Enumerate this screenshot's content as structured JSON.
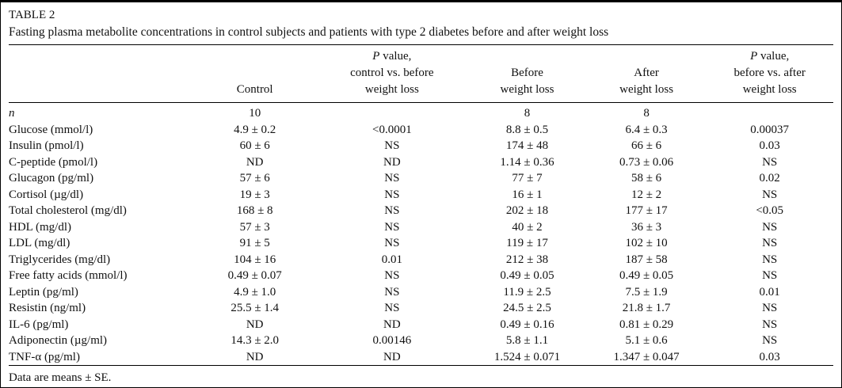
{
  "page": {
    "table_label": "TABLE 2",
    "caption": "Fasting plasma metabolite concentrations in control subjects and patients with type 2 diabetes before and after weight loss",
    "footnote": "Data are means ± SE."
  },
  "chart_data": {
    "type": "table",
    "headers": [
      {
        "lines": [
          ""
        ]
      },
      {
        "lines": [
          "Control"
        ]
      },
      {
        "lines": [
          "P value,",
          "control vs. before",
          "weight loss"
        ],
        "italic_first_letter": true
      },
      {
        "lines": [
          "Before",
          "weight loss"
        ]
      },
      {
        "lines": [
          "After",
          "weight loss"
        ]
      },
      {
        "lines": [
          "P value,",
          "before vs. after",
          "weight loss"
        ],
        "italic_first_letter": true
      }
    ],
    "rows": [
      {
        "label": "n",
        "label_italic": true,
        "values": [
          "10",
          "",
          "8",
          "8",
          ""
        ]
      },
      {
        "label": "Glucose (mmol/l)",
        "values": [
          "4.9 ± 0.2",
          "<0.0001",
          "8.8 ± 0.5",
          "6.4 ± 0.3",
          "0.00037"
        ]
      },
      {
        "label": "Insulin (pmol/l)",
        "values": [
          "60 ± 6",
          "NS",
          "174 ± 48",
          "66 ± 6",
          "0.03"
        ]
      },
      {
        "label": "C-peptide (pmol/l)",
        "values": [
          "ND",
          "ND",
          "1.14 ± 0.36",
          "0.73 ± 0.06",
          "NS"
        ]
      },
      {
        "label": "Glucagon (pg/ml)",
        "values": [
          "57 ± 6",
          "NS",
          "77 ± 7",
          "58 ± 6",
          "0.02"
        ]
      },
      {
        "label": "Cortisol (µg/dl)",
        "values": [
          "19 ± 3",
          "NS",
          "16 ± 1",
          "12 ± 2",
          "NS"
        ]
      },
      {
        "label": "Total cholesterol (mg/dl)",
        "values": [
          "168 ± 8",
          "NS",
          "202 ± 18",
          "177 ± 17",
          "<0.05"
        ]
      },
      {
        "label": "HDL (mg/dl)",
        "values": [
          "57 ± 3",
          "NS",
          "40 ± 2",
          "36 ± 3",
          "NS"
        ]
      },
      {
        "label": "LDL (mg/dl)",
        "values": [
          "91 ± 5",
          "NS",
          "119 ± 17",
          "102 ± 10",
          "NS"
        ]
      },
      {
        "label": "Triglycerides (mg/dl)",
        "values": [
          "104 ± 16",
          "0.01",
          "212 ± 38",
          "187 ± 58",
          "NS"
        ]
      },
      {
        "label": "Free fatty acids (mmol/l)",
        "values": [
          "0.49 ± 0.07",
          "NS",
          "0.49 ± 0.05",
          "0.49 ± 0.05",
          "NS"
        ]
      },
      {
        "label": "Leptin (pg/ml)",
        "values": [
          "4.9 ± 1.0",
          "NS",
          "11.9 ± 2.5",
          "7.5 ± 1.9",
          "0.01"
        ]
      },
      {
        "label": "Resistin (ng/ml)",
        "values": [
          "25.5 ± 1.4",
          "NS",
          "24.5 ± 2.5",
          "21.8 ± 1.7",
          "NS"
        ]
      },
      {
        "label": "IL-6 (pg/ml)",
        "values": [
          "ND",
          "ND",
          "0.49 ± 0.16",
          "0.81 ± 0.29",
          "NS"
        ]
      },
      {
        "label": "Adiponectin (µg/ml)",
        "values": [
          "14.3 ± 2.0",
          "0.00146",
          "5.8 ± 1.1",
          "5.1 ± 0.6",
          "NS"
        ]
      },
      {
        "label": "TNF-α (pg/ml)",
        "values": [
          "ND",
          "ND",
          "1.524 ± 0.071",
          "1.347 ± 0.047",
          "0.03"
        ]
      }
    ]
  }
}
